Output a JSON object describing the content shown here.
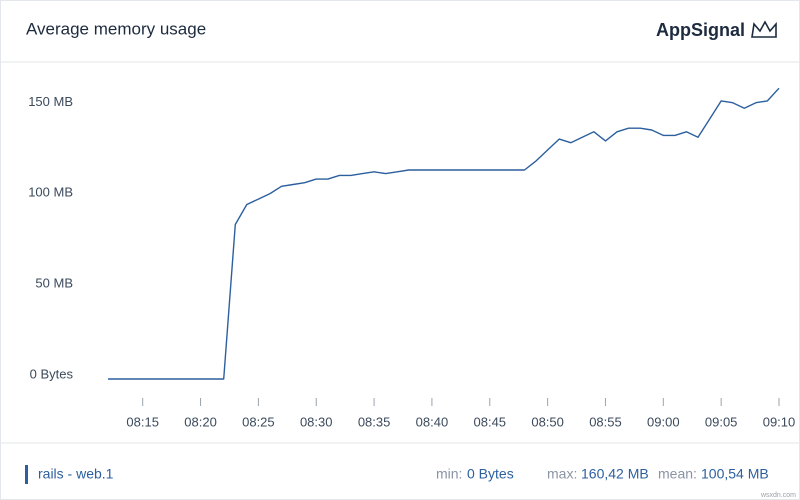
{
  "chart_data": {
    "type": "line",
    "title": "Average memory usage",
    "brand": "AppSignal",
    "x": [
      "08:12",
      "08:13",
      "08:14",
      "08:15",
      "08:16",
      "08:17",
      "08:18",
      "08:19",
      "08:20",
      "08:21",
      "08:22",
      "08:23",
      "08:24",
      "08:25",
      "08:26",
      "08:27",
      "08:28",
      "08:29",
      "08:30",
      "08:31",
      "08:32",
      "08:33",
      "08:34",
      "08:35",
      "08:36",
      "08:37",
      "08:38",
      "08:39",
      "08:40",
      "08:41",
      "08:42",
      "08:43",
      "08:44",
      "08:45",
      "08:46",
      "08:47",
      "08:48",
      "08:49",
      "08:50",
      "08:51",
      "08:52",
      "08:53",
      "08:54",
      "08:55",
      "08:56",
      "08:57",
      "08:58",
      "08:59",
      "09:00",
      "09:01",
      "09:02",
      "09:03",
      "09:04",
      "09:05",
      "09:06",
      "09:07",
      "09:08",
      "09:09",
      "09:10"
    ],
    "series": [
      {
        "name": "rails - web.1",
        "color": "#2c5f9e",
        "values": [
          0,
          0,
          0,
          0,
          0,
          0,
          0,
          0,
          0,
          0,
          0,
          85,
          96,
          99,
          102,
          106,
          107,
          108,
          110,
          110,
          112,
          112,
          113,
          114,
          113,
          114,
          115,
          115,
          115,
          115,
          115,
          115,
          115,
          115,
          115,
          115,
          115,
          120,
          126,
          132,
          130,
          133,
          136,
          131,
          136,
          138,
          138,
          137,
          134,
          134,
          136,
          133,
          143,
          153,
          152,
          149,
          152,
          153,
          160
        ]
      }
    ],
    "xlim": [
      "08:12",
      "09:10"
    ],
    "xticks": [
      "08:15",
      "08:20",
      "08:25",
      "08:30",
      "08:35",
      "08:40",
      "08:45",
      "08:50",
      "08:55",
      "09:00",
      "09:05",
      "09:10"
    ],
    "ylim": [
      0,
      170
    ],
    "yticks": [
      {
        "value": 0,
        "label": "0 Bytes"
      },
      {
        "value": 50,
        "label": "50 MB"
      },
      {
        "value": 100,
        "label": "100 MB"
      },
      {
        "value": 150,
        "label": "150 MB"
      }
    ],
    "grid": false,
    "stats": {
      "min_label": "min:",
      "min": "0 Bytes",
      "max_label": "max:",
      "max": "160,42 MB",
      "mean_label": "mean:",
      "mean": "100,54 MB"
    },
    "watermark": "wsxdn.com"
  }
}
